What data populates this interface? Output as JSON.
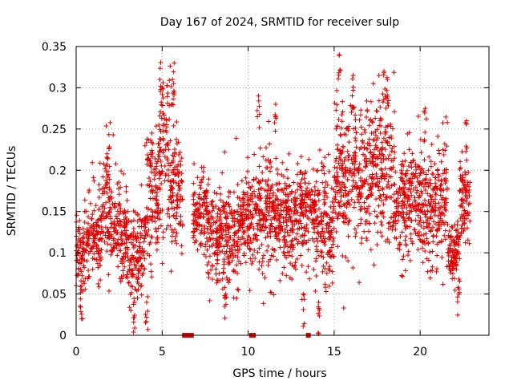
{
  "chart_data": {
    "type": "scatter",
    "title": "Day 167 of 2024, SRMTID for receiver sulp",
    "xlabel": "GPS time / hours",
    "ylabel": "SRMTID / TECUs",
    "xlim": [
      0,
      24
    ],
    "ylim": [
      0,
      0.35
    ],
    "grid": true,
    "marker": "+",
    "color": "#e00000",
    "x_ticks": [
      0,
      5,
      10,
      15,
      20
    ],
    "x_tick_labels": [
      "0",
      "5",
      "10",
      "15",
      "20"
    ],
    "y_ticks": [
      0,
      0.05,
      0.1,
      0.15,
      0.2,
      0.25,
      0.3,
      0.35
    ],
    "y_tick_labels": [
      "0",
      "0.05",
      "0.1",
      "0.15",
      "0.2",
      "0.25",
      "0.3",
      "0.35"
    ],
    "series": [
      {
        "name": "SRMTID",
        "segments": [
          {
            "x_start": 0.0,
            "x_end": 0.5,
            "y_center": 0.1,
            "y_spread": 0.035
          },
          {
            "x_start": 0.5,
            "x_end": 1.5,
            "y_center": 0.12,
            "y_spread": 0.035
          },
          {
            "x_start": 1.5,
            "x_end": 2.0,
            "y_center": 0.16,
            "y_spread": 0.05
          },
          {
            "x_start": 2.0,
            "x_end": 3.0,
            "y_center": 0.13,
            "y_spread": 0.04
          },
          {
            "x_start": 3.0,
            "x_end": 4.0,
            "y_center": 0.1,
            "y_spread": 0.04
          },
          {
            "x_start": 4.0,
            "x_end": 4.8,
            "y_center": 0.16,
            "y_spread": 0.055
          },
          {
            "x_start": 4.8,
            "x_end": 5.5,
            "y_center": 0.22,
            "y_spread": 0.07
          },
          {
            "x_start": 5.5,
            "x_end": 6.2,
            "y_center": 0.17,
            "y_spread": 0.05
          },
          {
            "x_start": 6.8,
            "x_end": 7.6,
            "y_center": 0.15,
            "y_spread": 0.035
          },
          {
            "x_start": 7.6,
            "x_end": 9.5,
            "y_center": 0.12,
            "y_spread": 0.04
          },
          {
            "x_start": 9.5,
            "x_end": 10.2,
            "y_center": 0.14,
            "y_spread": 0.04
          },
          {
            "x_start": 10.2,
            "x_end": 11.5,
            "y_center": 0.15,
            "y_spread": 0.05
          },
          {
            "x_start": 11.5,
            "x_end": 13.0,
            "y_center": 0.14,
            "y_spread": 0.04
          },
          {
            "x_start": 13.0,
            "x_end": 14.0,
            "y_center": 0.15,
            "y_spread": 0.045
          },
          {
            "x_start": 14.0,
            "x_end": 15.0,
            "y_center": 0.13,
            "y_spread": 0.05
          },
          {
            "x_start": 15.0,
            "x_end": 17.0,
            "y_center": 0.19,
            "y_spread": 0.06
          },
          {
            "x_start": 17.0,
            "x_end": 18.5,
            "y_center": 0.2,
            "y_spread": 0.065
          },
          {
            "x_start": 18.5,
            "x_end": 20.0,
            "y_center": 0.16,
            "y_spread": 0.045
          },
          {
            "x_start": 20.0,
            "x_end": 21.0,
            "y_center": 0.15,
            "y_spread": 0.05
          },
          {
            "x_start": 21.0,
            "x_end": 21.6,
            "y_center": 0.17,
            "y_spread": 0.055
          },
          {
            "x_start": 21.6,
            "x_end": 22.3,
            "y_center": 0.1,
            "y_spread": 0.025
          },
          {
            "x_start": 22.3,
            "x_end": 22.9,
            "y_center": 0.16,
            "y_spread": 0.035
          }
        ],
        "peaks": [
          [
            5.0,
            0.3
          ],
          [
            5.7,
            0.33
          ],
          [
            5.6,
            0.31
          ],
          [
            10.6,
            0.29
          ],
          [
            11.6,
            0.28
          ],
          [
            15.3,
            0.34
          ],
          [
            16.1,
            0.315
          ],
          [
            17.9,
            0.32
          ],
          [
            18.1,
            0.31
          ],
          [
            20.3,
            0.275
          ],
          [
            22.7,
            0.26
          ],
          [
            1.8,
            0.22
          ],
          [
            4.4,
            0.245
          ],
          [
            0.3,
            0.055
          ],
          [
            3.4,
            0.04
          ],
          [
            4.1,
            0.04
          ],
          [
            8.7,
            0.05
          ],
          [
            14.1,
            0.04
          ],
          [
            13.2,
            0.05
          ],
          [
            22.2,
            0.058
          ]
        ],
        "zero_points": [
          6.3,
          6.4,
          6.5,
          6.6,
          6.7,
          10.2,
          10.3,
          13.5
        ]
      }
    ]
  }
}
